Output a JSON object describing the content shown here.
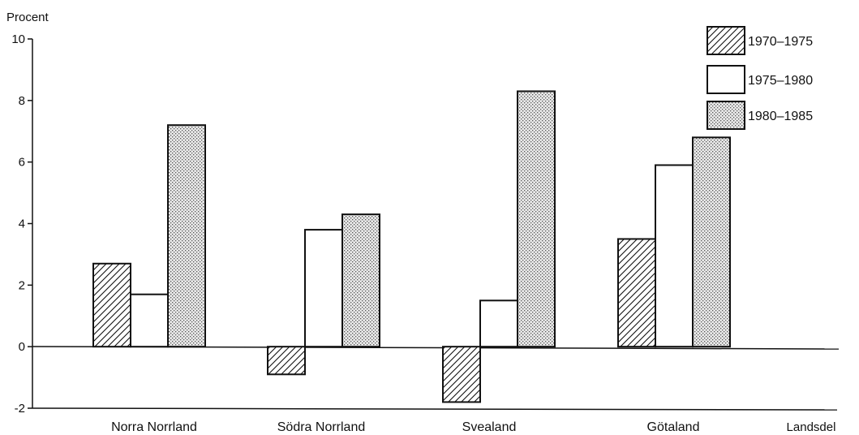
{
  "chart_data": {
    "type": "bar",
    "ylabel": "Procent",
    "xlabel": "Landsdel",
    "categories": [
      "Norra Norrland",
      "Södra Norrland",
      "Svealand",
      "Götaland"
    ],
    "series": [
      {
        "name": "1970–1975",
        "pattern": "hatch",
        "values": [
          2.7,
          -0.9,
          -1.8,
          3.5
        ]
      },
      {
        "name": "1975–1980",
        "pattern": "white",
        "values": [
          1.7,
          3.8,
          1.5,
          5.9
        ]
      },
      {
        "name": "1980–1985",
        "pattern": "dots",
        "values": [
          7.2,
          4.3,
          8.3,
          6.8
        ]
      }
    ],
    "ylim": [
      -2,
      10
    ],
    "yticks": [
      "-2",
      "0",
      "2",
      "4",
      "6",
      "8",
      "10"
    ],
    "legend_position": "top-right",
    "grid": false
  }
}
